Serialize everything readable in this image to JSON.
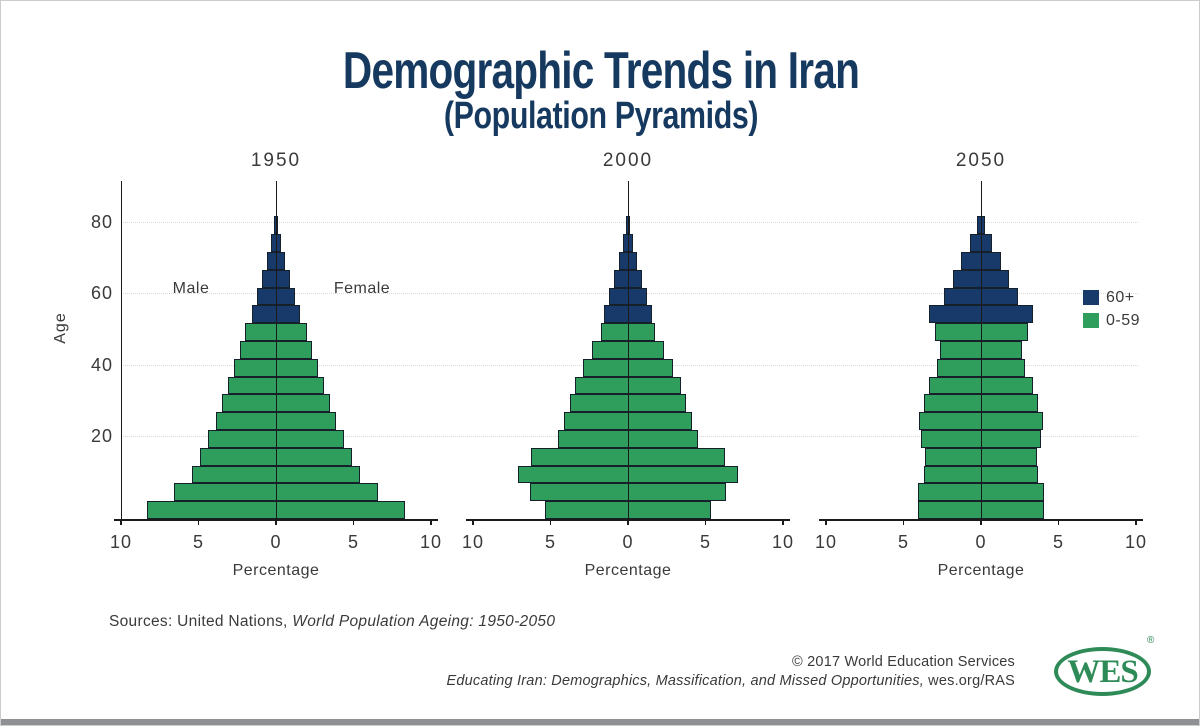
{
  "title": {
    "line1": "Demographic Trends in Iran",
    "line2": "(Population Pyramids)"
  },
  "y_axis": {
    "label": "Age",
    "ticks": [
      20,
      40,
      60,
      80
    ]
  },
  "x_axis": {
    "label": "Percentage",
    "tick_values": [
      -10,
      -5,
      0,
      5,
      10
    ],
    "tick_labels": [
      "10",
      "5",
      "0",
      "5",
      "10"
    ]
  },
  "side_labels": {
    "male": "Male",
    "female": "Female"
  },
  "legend": {
    "items": [
      {
        "label": "60+",
        "color": "#173a6b"
      },
      {
        "label": "0-59",
        "color": "#2f9e5c"
      }
    ]
  },
  "colors": {
    "bar_green": "#2f9e5c",
    "bar_navy": "#173a6b",
    "bar_outline": "#16202a",
    "title_navy": "#15395f",
    "text": "#3a3a3a",
    "gridline": "#d9d9d9",
    "axis": "#1a1a1a",
    "logo_green": "#2e8b57",
    "bottom_bar": "#8e9093"
  },
  "chart_data": {
    "type": "bar",
    "subtype": "population_pyramid_small_multiples",
    "title": "Demographic Trends in Iran (Population Pyramids)",
    "xlabel": "Percentage",
    "ylabel": "Age",
    "xlim_per_side": [
      0,
      10
    ],
    "ylim": [
      0,
      90
    ],
    "grid": "horizontal dotted gridlines at ages 20, 40, 60, 80",
    "age_band_years": 5,
    "age_groups": [
      "0-4",
      "5-9",
      "10-14",
      "15-19",
      "20-24",
      "25-29",
      "30-34",
      "35-39",
      "40-44",
      "45-49",
      "50-54",
      "55-59",
      "60-64",
      "65-69",
      "70-74",
      "75-79",
      "80+"
    ],
    "green_band_count": 11,
    "legend_entries": [
      "60+",
      "0-59"
    ],
    "pyramids": [
      {
        "year": "1950",
        "male": [
          8.3,
          6.6,
          5.4,
          4.9,
          4.4,
          3.9,
          3.5,
          3.1,
          2.7,
          2.35,
          2.0,
          1.55,
          1.2,
          0.9,
          0.6,
          0.35,
          0.15
        ],
        "female": [
          8.3,
          6.6,
          5.4,
          4.9,
          4.4,
          3.9,
          3.5,
          3.1,
          2.7,
          2.35,
          2.0,
          1.55,
          1.2,
          0.9,
          0.6,
          0.35,
          0.15
        ]
      },
      {
        "year": "2000",
        "male": [
          5.35,
          6.3,
          7.1,
          6.25,
          4.5,
          4.15,
          3.75,
          3.45,
          2.9,
          2.3,
          1.75,
          1.55,
          1.2,
          0.9,
          0.6,
          0.35,
          0.15
        ],
        "female": [
          5.35,
          6.3,
          7.1,
          6.25,
          4.5,
          4.15,
          3.75,
          3.45,
          2.9,
          2.3,
          1.75,
          1.55,
          1.2,
          0.9,
          0.6,
          0.35,
          0.15
        ]
      },
      {
        "year": "2050",
        "male": [
          4.05,
          4.05,
          3.7,
          3.6,
          3.85,
          4.0,
          3.7,
          3.35,
          2.85,
          2.65,
          3.0,
          3.35,
          2.4,
          1.8,
          1.3,
          0.7,
          0.25
        ],
        "female": [
          4.05,
          4.05,
          3.7,
          3.6,
          3.85,
          4.0,
          3.7,
          3.35,
          2.85,
          2.65,
          3.0,
          3.35,
          2.4,
          1.8,
          1.3,
          0.7,
          0.25
        ]
      }
    ]
  },
  "footer": {
    "sources_prefix": "Sources: United Nations, ",
    "sources_italic": "World Population Ageing: 1950-2050",
    "copyright": "© 2017 World Education Services",
    "publication_italic": "Educating Iran: Demographics, Massification, and Missed Opportunities,",
    "publication_suffix": " wes.org/RAS",
    "logo_text": "WES",
    "registered_mark": "®"
  }
}
